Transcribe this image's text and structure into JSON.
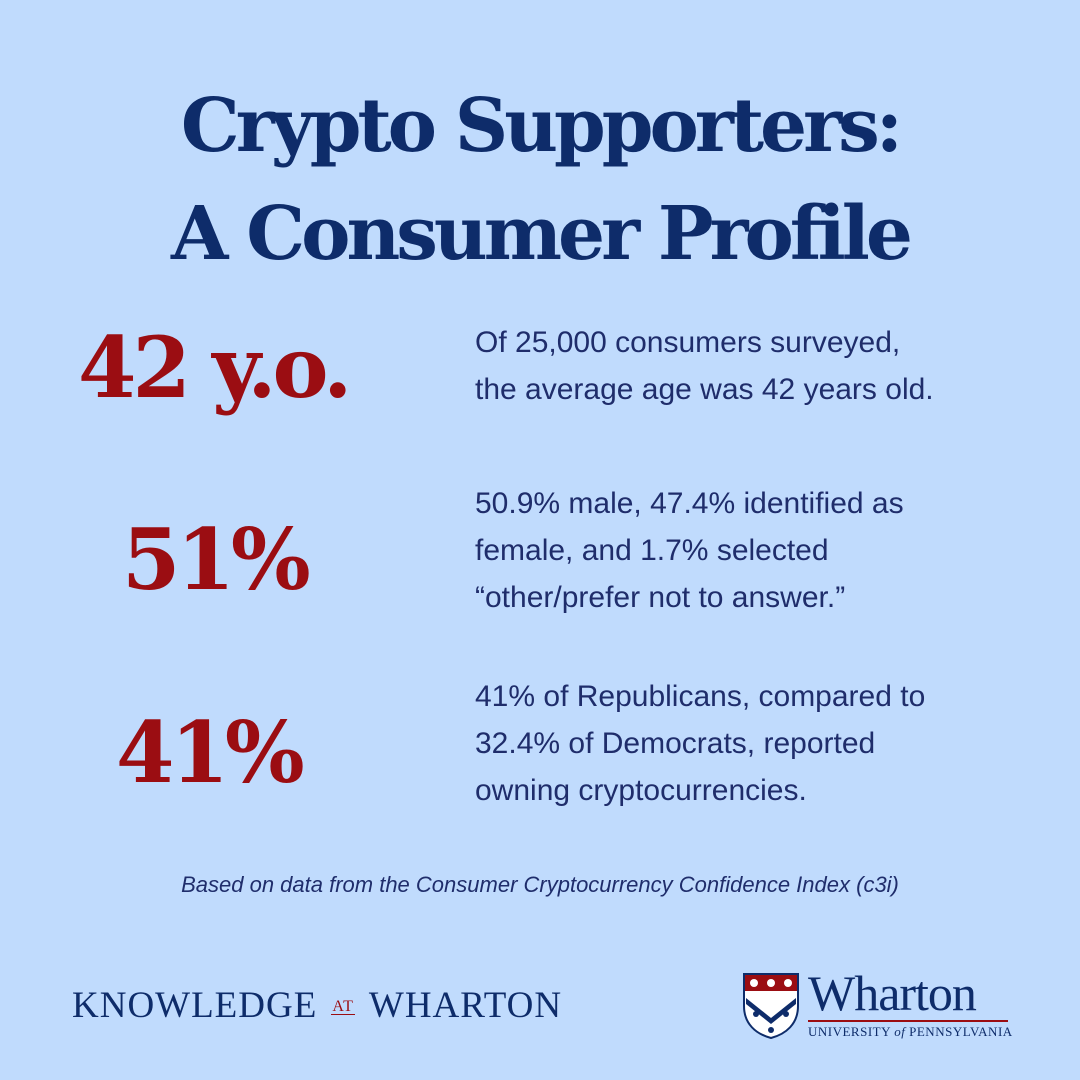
{
  "title": {
    "line1": "Crypto Supporters:",
    "line2": "A Consumer Profile"
  },
  "stats": [
    {
      "value": "42 y.o.",
      "lines": [
        "Of 25,000 consumers surveyed,",
        "the average age was 42 years old."
      ]
    },
    {
      "value": "51%",
      "lines": [
        "50.9% male, 47.4% identified as",
        "female, and 1.7% selected",
        "“other/prefer not to answer.”"
      ]
    },
    {
      "value": "41%",
      "lines": [
        "41% of Republicans, compared to",
        "32.4% of Democrats, reported",
        "owning cryptocurrencies."
      ]
    }
  ],
  "footnote": "Based on data from the Consumer Cryptocurrency Confidence Index (c3i)",
  "knowledge_logo": {
    "part1": "KNOWLEDGE",
    "at": "AT",
    "part2": "WHARTON"
  },
  "wharton_logo": {
    "wordmark": "Wharton",
    "sub_before": "UNIVERSITY",
    "sub_of": "of",
    "sub_after": "PENNSYLVANIA"
  },
  "colors": {
    "background": "#c0dbfd",
    "navy": "#0e2c6a",
    "red": "#9b0d12",
    "text": "#1f2d6b"
  }
}
